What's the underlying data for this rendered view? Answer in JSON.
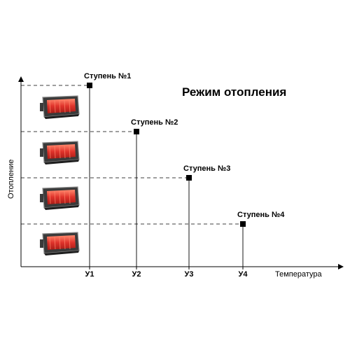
{
  "diagram": {
    "title": "Режим отопления",
    "x_axis_label": "Температура",
    "y_axis_label": "Отопление",
    "stages": [
      {
        "label": "Ступень №1",
        "tick": "У1"
      },
      {
        "label": "Ступень №2",
        "tick": "У2"
      },
      {
        "label": "Ступень №3",
        "tick": "У3"
      },
      {
        "label": "Ступень №4",
        "tick": "У4"
      }
    ],
    "heater_count": 4,
    "colors": {
      "line": "#000000",
      "heater_body": "#3a3a3a",
      "heater_frame": "#8c8c8c",
      "heater_glow": "#e0332b",
      "heater_glow_light": "#ff8a6e"
    }
  }
}
